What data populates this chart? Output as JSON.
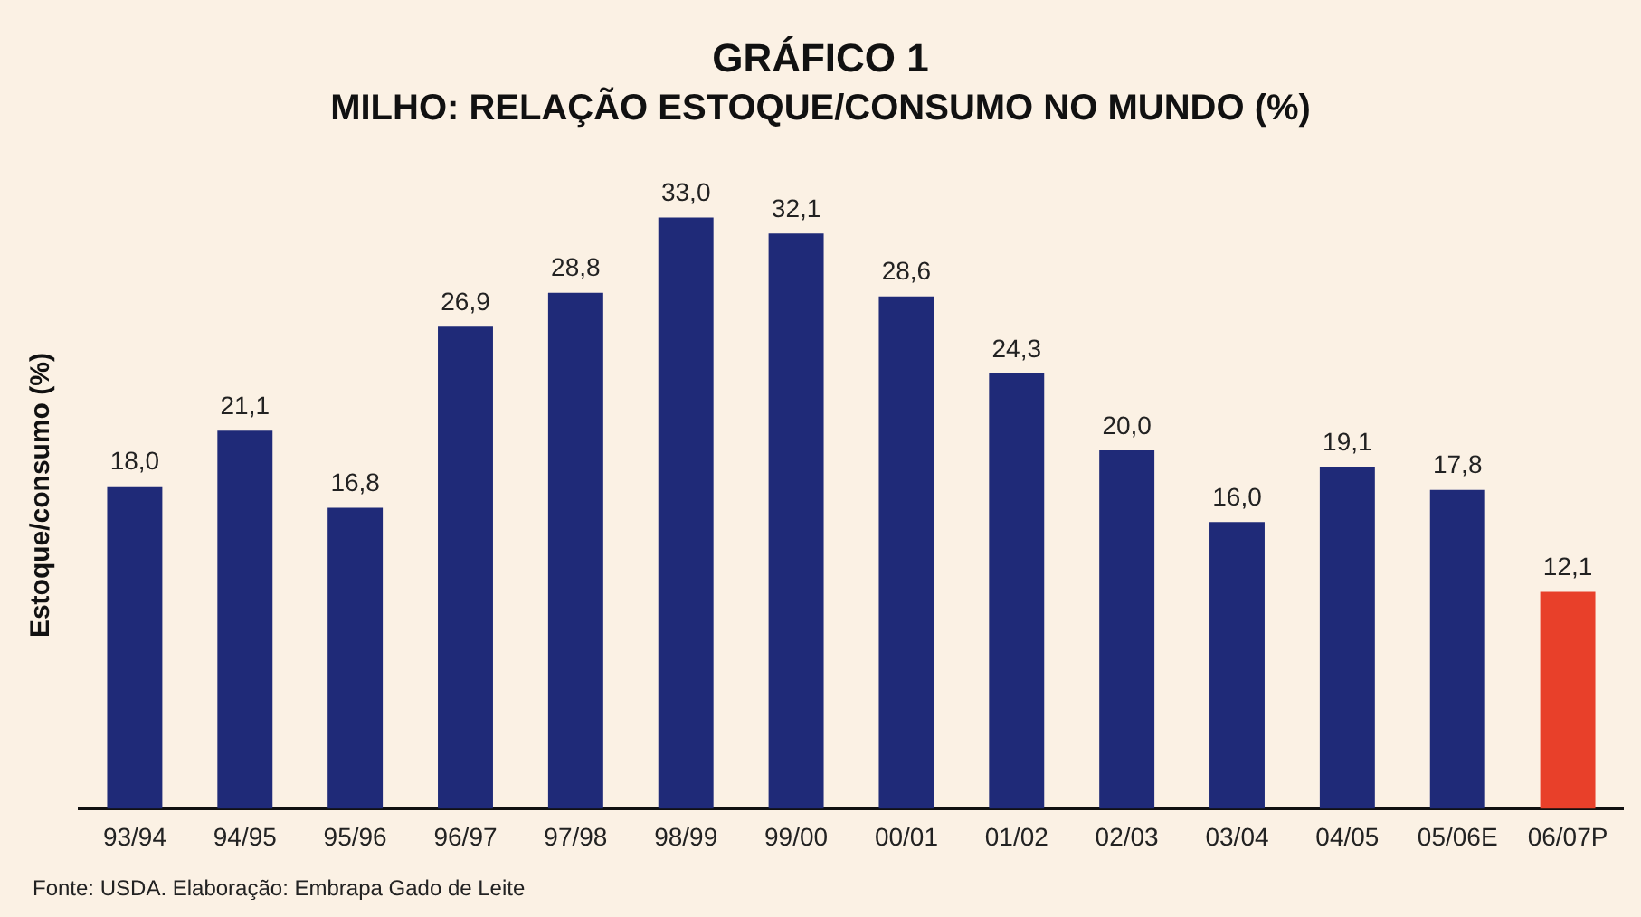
{
  "chart_data": {
    "type": "bar",
    "title": "GRÁFICO 1",
    "subtitle": "MILHO: RELAÇÃO ESTOQUE/CONSUMO NO MUNDO (%)",
    "ylabel": "Estoque/consumo (%)",
    "categories": [
      "93/94",
      "94/95",
      "95/96",
      "96/97",
      "97/98",
      "98/99",
      "99/00",
      "00/01",
      "01/02",
      "02/03",
      "03/04",
      "04/05",
      "05/06E",
      "06/07P"
    ],
    "values": [
      18.0,
      21.1,
      16.8,
      26.9,
      28.8,
      33.0,
      32.1,
      28.6,
      24.3,
      20.0,
      16.0,
      19.1,
      17.8,
      12.1
    ],
    "colors": [
      "#1f2a78",
      "#1f2a78",
      "#1f2a78",
      "#1f2a78",
      "#1f2a78",
      "#1f2a78",
      "#1f2a78",
      "#1f2a78",
      "#1f2a78",
      "#1f2a78",
      "#1f2a78",
      "#1f2a78",
      "#1f2a78",
      "#e8402a"
    ],
    "value_labels": [
      "18,0",
      "21,1",
      "16,8",
      "26,9",
      "28,8",
      "33,0",
      "32,1",
      "28,6",
      "24,3",
      "20,0",
      "16,0",
      "19,1",
      "17,8",
      "12,1"
    ],
    "tick_labels": "x",
    "grid": false,
    "legend": false,
    "annotations": [
      "Fonte: USDA. Elaboração: Embrapa Gado de Leite"
    ]
  }
}
